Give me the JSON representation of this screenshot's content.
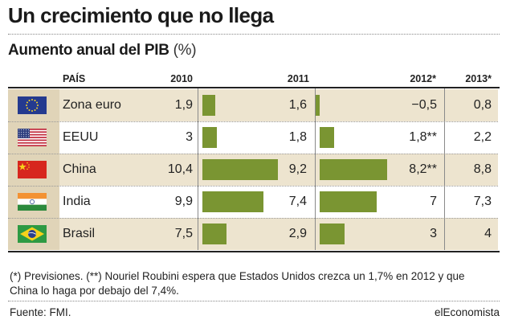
{
  "title": "Un crecimiento que no llega",
  "subtitle": "Aumento anual del PIB",
  "subtitle_unit": "(%)",
  "headers": {
    "country": "PAÍS",
    "c2010": "2010",
    "c2011": "2011",
    "c2012": "2012*",
    "c2013": "2013*"
  },
  "colors": {
    "bar": "#7a9532",
    "row_tan": "#ede4cf",
    "flag_col": "#e0d4b8"
  },
  "chart_data": {
    "type": "table",
    "columns": [
      "2010",
      "2011",
      "2012*",
      "2013*"
    ],
    "rows": [
      {
        "country": "Zona euro",
        "flag": "eu-flag-icon",
        "v2010": "1,9",
        "v2011": "1,6",
        "v2012": "−0,5",
        "v2013": "0,8",
        "bar2011": 1.6,
        "bar2012": -0.5
      },
      {
        "country": "EEUU",
        "flag": "usa-flag-icon",
        "v2010": "3",
        "v2011": "1,8",
        "v2012": "1,8**",
        "v2013": "2,2",
        "bar2011": 1.8,
        "bar2012": 1.8
      },
      {
        "country": "China",
        "flag": "china-flag-icon",
        "v2010": "10,4",
        "v2011": "9,2",
        "v2012": "8,2**",
        "v2013": "8,8",
        "bar2011": 9.2,
        "bar2012": 8.2
      },
      {
        "country": "India",
        "flag": "india-flag-icon",
        "v2010": "9,9",
        "v2011": "7,4",
        "v2012": "7",
        "v2013": "7,3",
        "bar2011": 7.4,
        "bar2012": 7.0
      },
      {
        "country": "Brasil",
        "flag": "brazil-flag-icon",
        "v2010": "7,5",
        "v2011": "2,9",
        "v2012": "3",
        "v2013": "4",
        "bar2011": 2.9,
        "bar2012": 3.0
      }
    ]
  },
  "note": "(*) Previsiones. (**) Nouriel Roubini espera que Estados Unidos crezca un 1,7% en 2012 y que China lo haga por debajo del 7,4%.",
  "source": "Fuente: FMI.",
  "brand": "elEconomista"
}
